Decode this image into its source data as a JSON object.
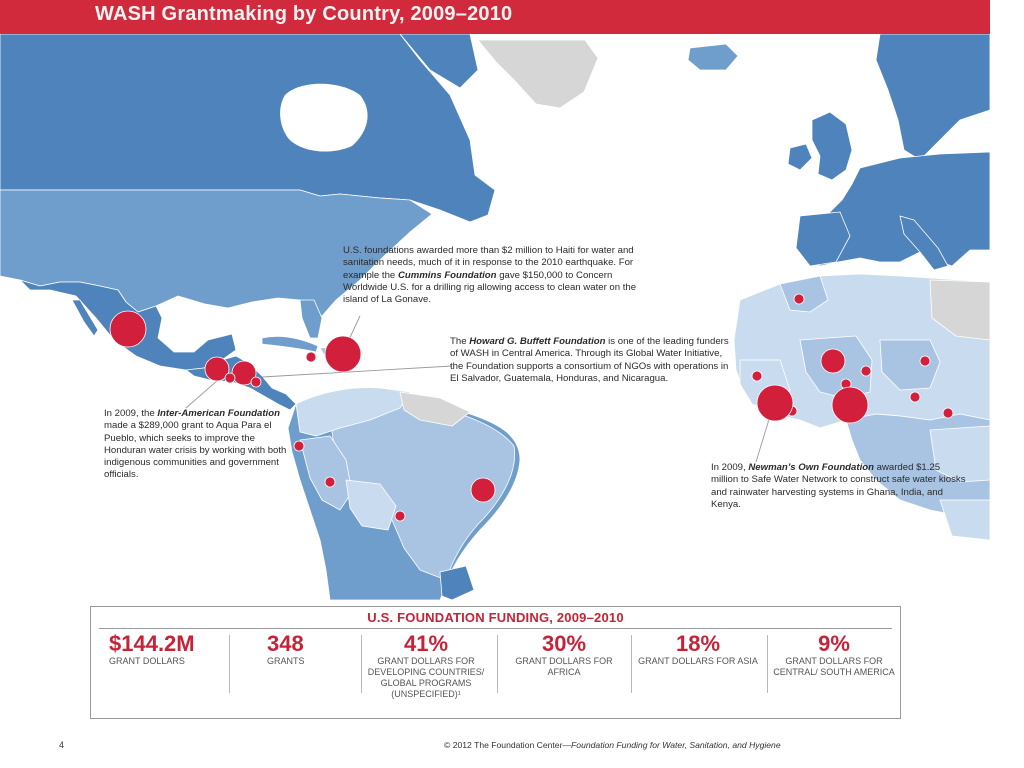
{
  "header": {
    "title": "WASH Grantmaking by Country, 2009–2010"
  },
  "colors": {
    "banner": "#d02a3c",
    "ocean": "#ffffff",
    "land_dark": "#4f83bb",
    "land_mid": "#6f9dcc",
    "land_light": "#a8c4e2",
    "land_pale": "#c9dcef",
    "land_grey": "#d6d6d6",
    "marker": "#d21f3c",
    "accent_text": "#c72338"
  },
  "map": {
    "markers": [
      {
        "name": "mexico",
        "size": "large"
      },
      {
        "name": "haiti",
        "size": "large"
      },
      {
        "name": "guatemala",
        "size": "medium"
      },
      {
        "name": "honduras",
        "size": "medium"
      },
      {
        "name": "el-salvador",
        "size": "small"
      },
      {
        "name": "nicaragua",
        "size": "small"
      },
      {
        "name": "jamaica",
        "size": "small"
      },
      {
        "name": "ecuador",
        "size": "small"
      },
      {
        "name": "peru",
        "size": "small"
      },
      {
        "name": "brazil",
        "size": "medium"
      },
      {
        "name": "bolivia",
        "size": "small"
      },
      {
        "name": "morocco",
        "size": "small"
      },
      {
        "name": "mali",
        "size": "medium"
      },
      {
        "name": "niger",
        "size": "small"
      },
      {
        "name": "senegal",
        "size": "small"
      },
      {
        "name": "guinea",
        "size": "small"
      },
      {
        "name": "sierra-leone",
        "size": "large"
      },
      {
        "name": "liberia",
        "size": "small"
      },
      {
        "name": "burkina-faso",
        "size": "small"
      },
      {
        "name": "ghana",
        "size": "large"
      },
      {
        "name": "nigeria",
        "size": "small"
      },
      {
        "name": "cameroon",
        "size": "small"
      }
    ]
  },
  "callouts": {
    "haiti": {
      "pre": "U.S. foundations awarded more than $2 million to Haiti for water and sanitation needs, much of it in response to the 2010 earthquake. For example the ",
      "org": "Cummins Foundation",
      "post": " gave $150,000 to Concern Worldwide U.S. for a drilling rig allowing access to clean water on the island of La Gonave."
    },
    "buffett": {
      "pre": "The ",
      "org": "Howard G. Buffett Foundation",
      "post": " is one of the leading funders of WASH in Central America. Through its Global Water Initiative, the Foundation supports a consortium of NGOs with operations in El Salvador, Guatemala, Honduras, and Nicaragua."
    },
    "iaf": {
      "pre": "In 2009, the ",
      "org": "Inter-American Foundation",
      "post": " made a $289,000 grant to Aqua Para el Pueblo, which seeks to improve the Honduran water crisis by working with both indigenous communities and government officials."
    },
    "newman": {
      "pre": "In 2009, ",
      "org": "Newman’s Own Foundation",
      "post": " awarded $1.25 million to Safe Water Network to construct safe water kiosks and rainwater harvesting systems in Ghana, India, and Kenya."
    }
  },
  "summary": {
    "title": "U.S. FOUNDATION FUNDING, 2009–2010",
    "stats": [
      {
        "value": "$144.2M",
        "label": "GRANT DOLLARS",
        "align": "left"
      },
      {
        "value": "348",
        "label": "GRANTS",
        "align": "left"
      },
      {
        "value": "41%",
        "label": "GRANT DOLLARS FOR DEVELOPING COUNTRIES/ GLOBAL PROGRAMS (UNSPECIFIED)¹",
        "align": "center"
      },
      {
        "value": "30%",
        "label": "GRANT DOLLARS FOR AFRICA",
        "align": "center"
      },
      {
        "value": "18%",
        "label": "GRANT DOLLARS FOR ASIA",
        "align": "center"
      },
      {
        "value": "9%",
        "label": "GRANT DOLLARS FOR CENTRAL/ SOUTH AMERICA",
        "align": "center"
      }
    ]
  },
  "footer": {
    "page_number": "4",
    "copyright": "© 2012 The Foundation Center—",
    "publication": "Foundation Funding for Water, Sanitation, and Hygiene"
  }
}
